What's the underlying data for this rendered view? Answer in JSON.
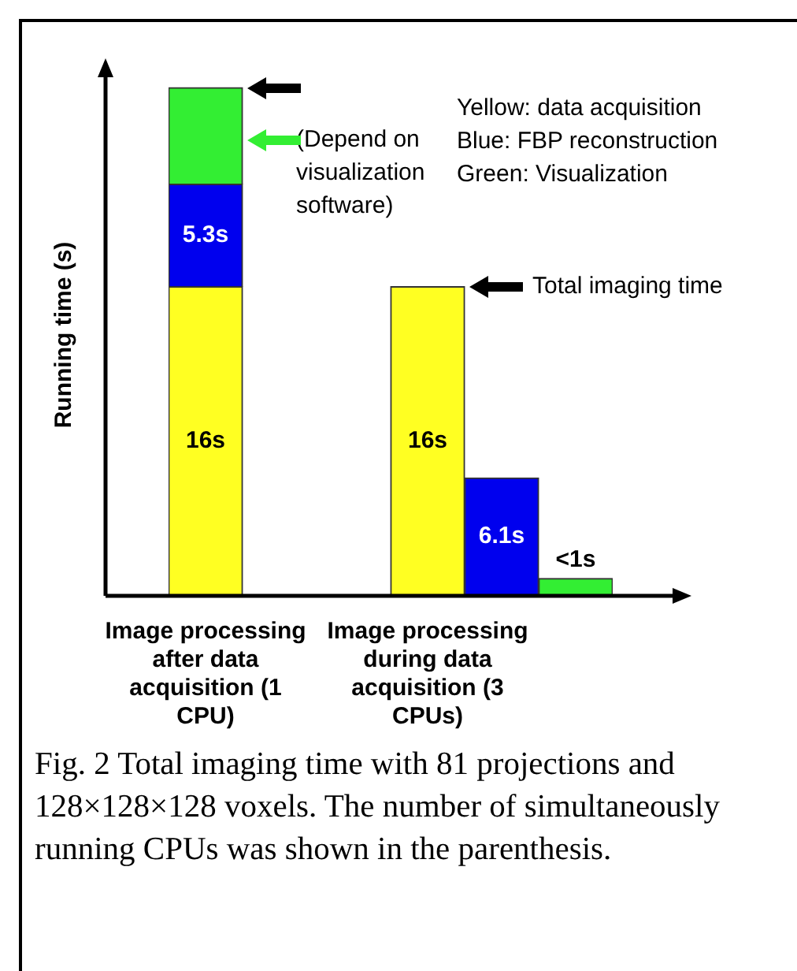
{
  "chart_data": {
    "type": "bar",
    "stacked": true,
    "ylabel": "Running time (s)",
    "categories": [
      "Image processing after data acquisition (1 CPU)",
      null,
      null,
      "Image processing during data acquisition (3 CPUs)",
      null,
      null
    ],
    "series": [
      {
        "color": "#ffff22",
        "values": [
          16,
          null,
          null,
          16,
          null,
          null
        ],
        "value_labels": [
          "16s",
          null,
          null,
          "16s",
          null,
          null
        ]
      },
      {
        "color": "#0000ee",
        "values": [
          5.3,
          null,
          null,
          null,
          6.1,
          null
        ],
        "value_labels": [
          "5.3s",
          null,
          null,
          null,
          "6.1s",
          null
        ]
      },
      {
        "color": "#33ee33",
        "values": [
          5.0,
          null,
          null,
          null,
          null,
          0.9
        ],
        "value_labels": [
          null,
          null,
          null,
          null,
          null,
          "<1s"
        ]
      }
    ],
    "ylim": [
      0,
      27
    ],
    "tick_labels": "x",
    "grid": false,
    "legend": false,
    "annotations": [
      "(Depend on visualization software)",
      "Total imaging time",
      "Yellow: data acquisition",
      "Blue: FBP reconstruction",
      "Green: Visualization",
      "Fig. 2 Total imaging time with 81 projections and 128×128×128 voxels. The number of simultaneously running CPUs was shown in the parenthesis."
    ]
  }
}
